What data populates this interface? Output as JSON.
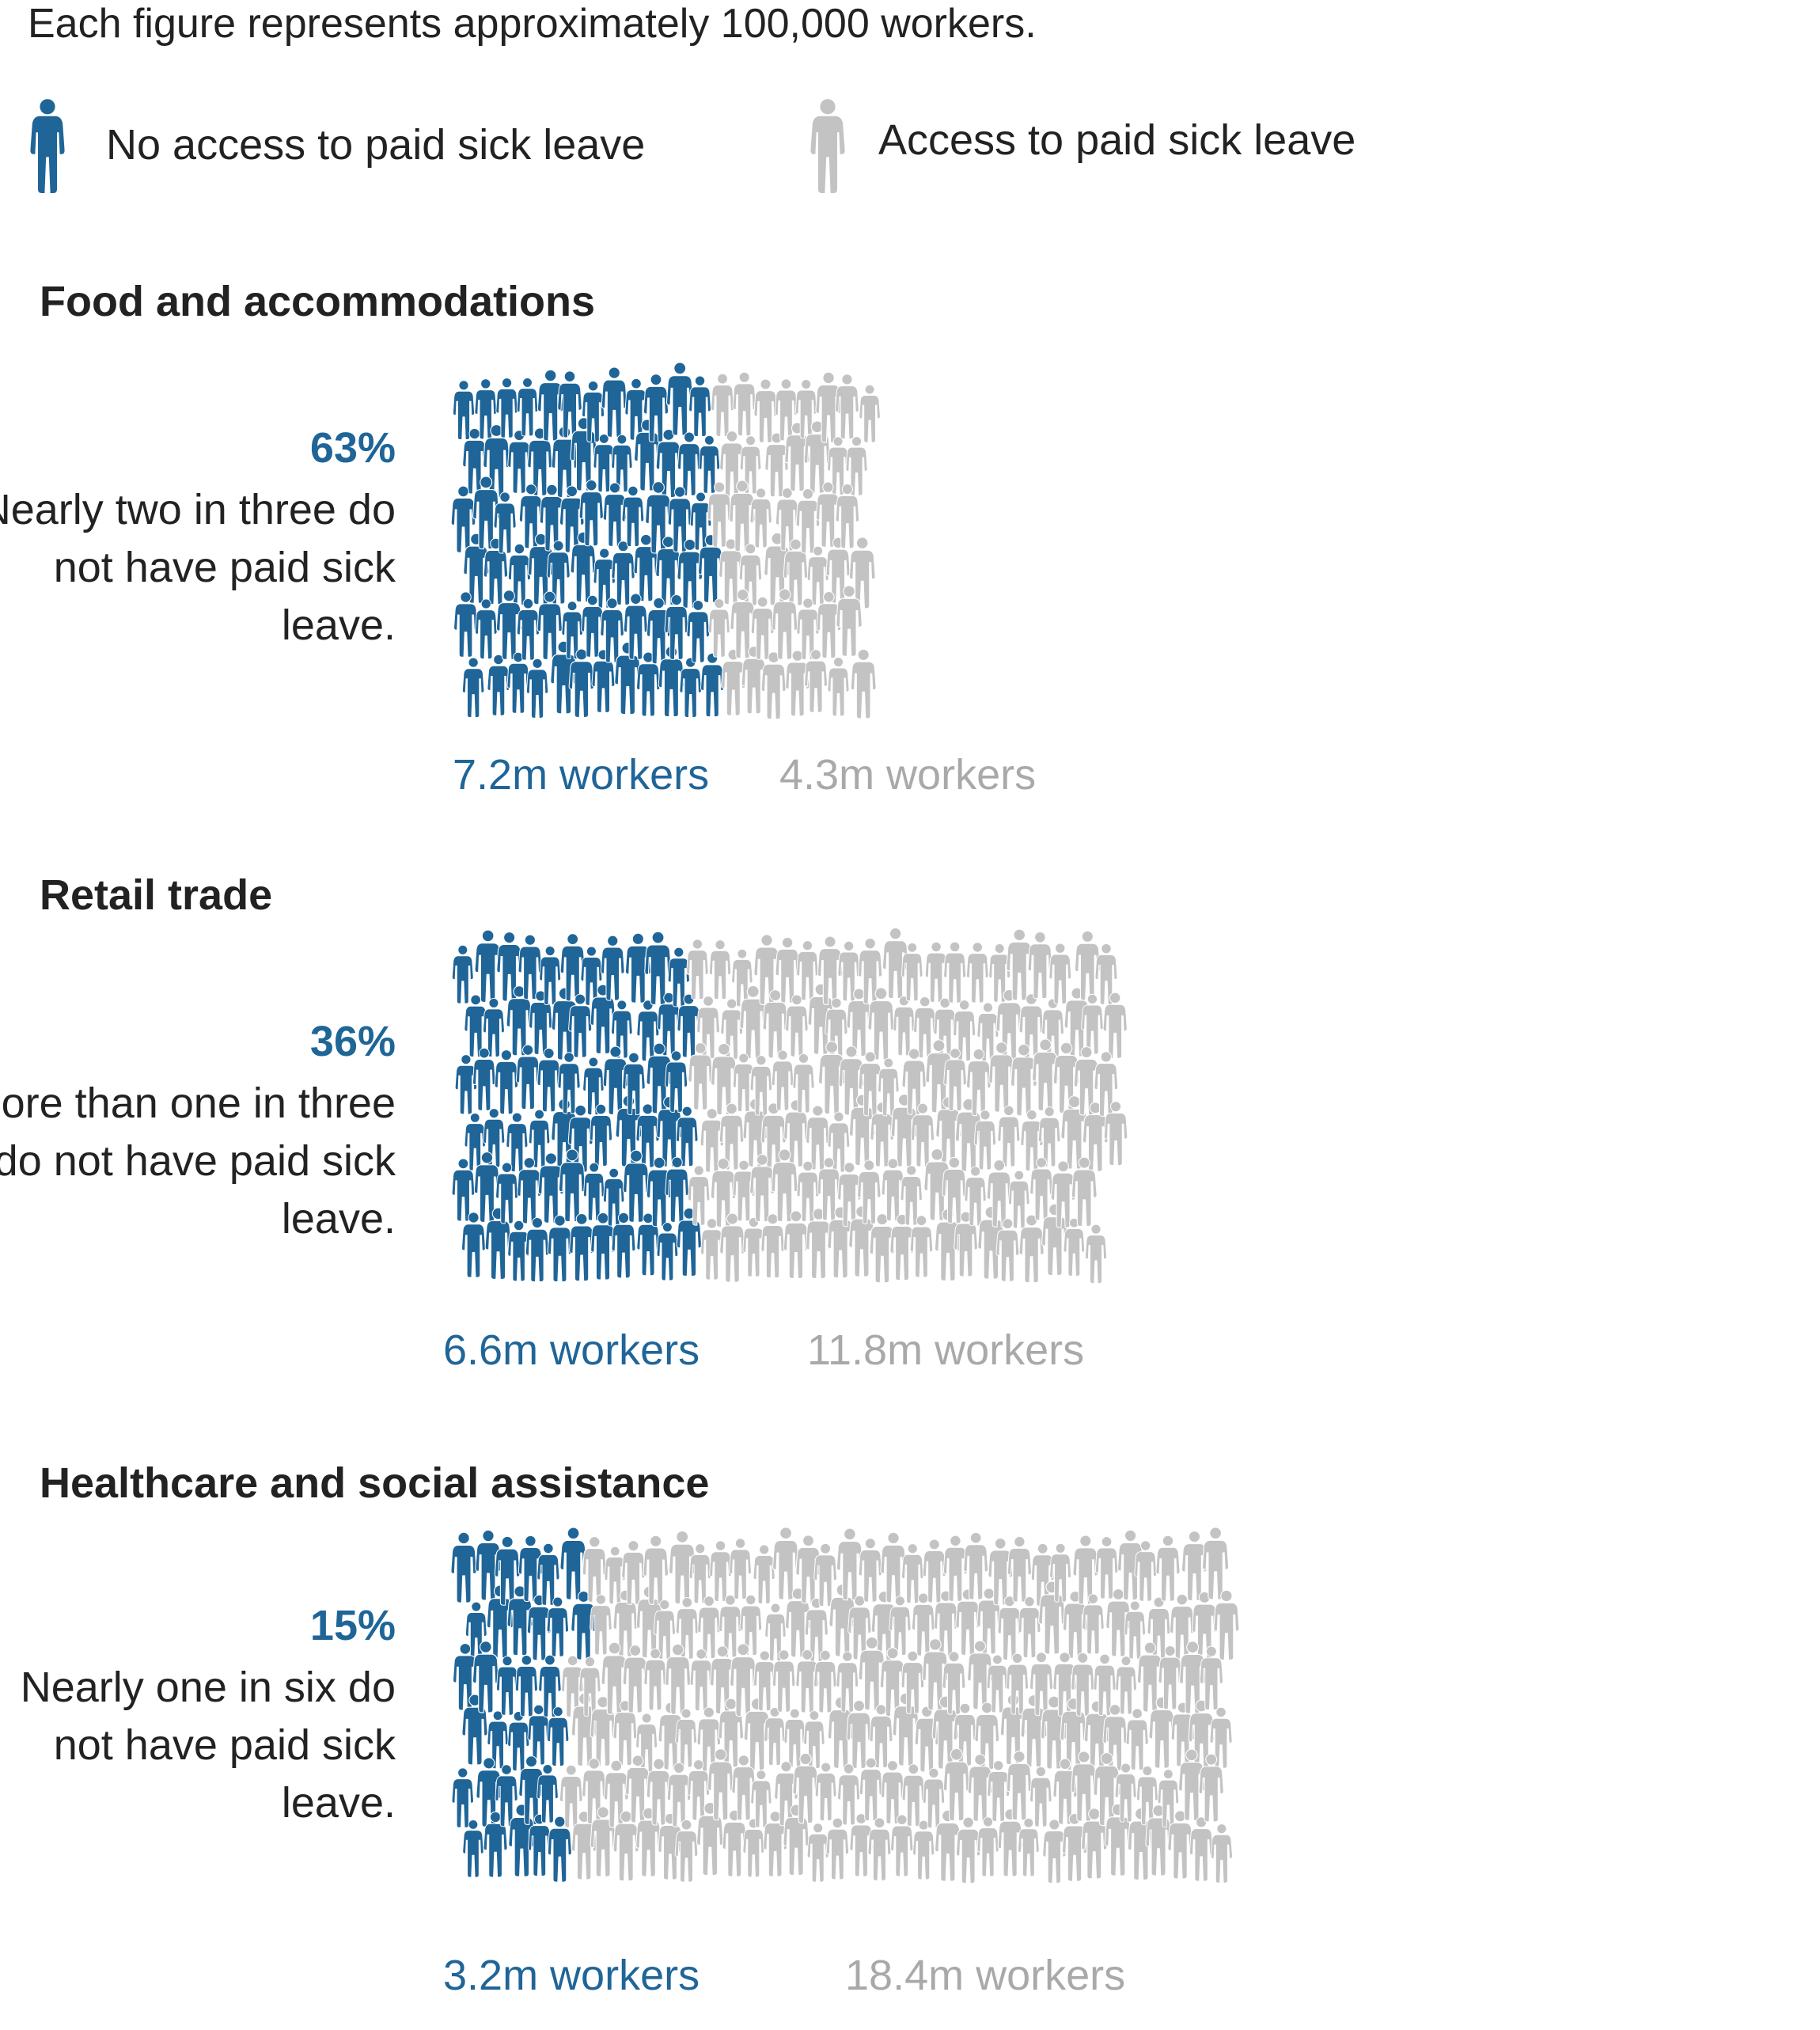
{
  "intro": "Each figure represents approximately 100,000 workers.",
  "legend": [
    {
      "label": "No access to paid sick leave",
      "color": "#1f6598",
      "icon": "person-figure-icon"
    },
    {
      "label": "Access to paid sick leave",
      "color": "#c3c3c3",
      "icon": "person-figure-icon"
    }
  ],
  "colors": {
    "no_access": "#1f6598",
    "access": "#c3c3c3",
    "access_text": "#a9a9a9"
  },
  "chart_data": [
    {
      "type": "pictogram",
      "title": "Food and accommodations",
      "percent_label": "63%",
      "description": "Nearly two in three do not have paid sick leave.",
      "series": [
        {
          "name": "No access to paid sick leave",
          "value_millions": 7.2,
          "label": "7.2m workers"
        },
        {
          "name": "Access to paid sick leave",
          "value_millions": 4.3,
          "label": "4.3m workers"
        }
      ]
    },
    {
      "type": "pictogram",
      "title": "Retail trade",
      "percent_label": "36%",
      "description": "More than one in three do not have paid sick leave.",
      "series": [
        {
          "name": "No access to paid sick leave",
          "value_millions": 6.6,
          "label": "6.6m workers"
        },
        {
          "name": "Access to paid sick leave",
          "value_millions": 11.8,
          "label": "11.8m workers"
        }
      ]
    },
    {
      "type": "pictogram",
      "title": "Healthcare and social assistance",
      "percent_label": "15%",
      "description": "Nearly one in six do not have paid sick leave.",
      "series": [
        {
          "name": "No access to paid sick leave",
          "value_millions": 3.2,
          "label": "3.2m workers"
        },
        {
          "name": "Access to paid sick leave",
          "value_millions": 18.4,
          "label": "18.4m workers"
        }
      ]
    }
  ]
}
